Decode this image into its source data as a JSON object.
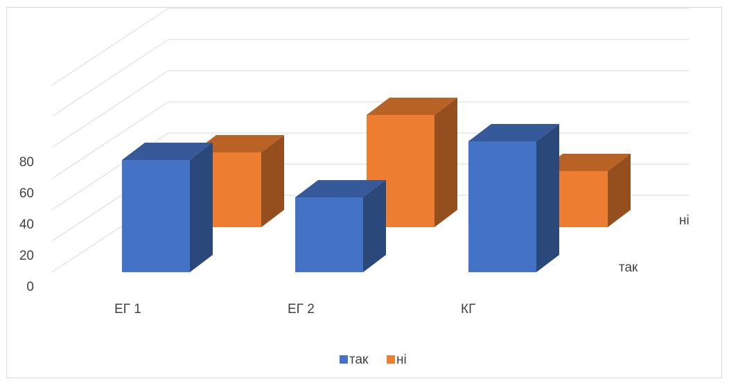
{
  "chart_data": {
    "type": "bar",
    "subtype": "3d-clustered-column",
    "categories": [
      "ЕГ 1",
      "ЕГ 2",
      "КГ"
    ],
    "series": [
      {
        "name": "так",
        "color": "#4472c4",
        "values": [
          60,
          40,
          70
        ]
      },
      {
        "name": "ні",
        "color": "#ed7d31",
        "values": [
          40,
          60,
          30
        ]
      }
    ],
    "y_ticks": [
      "0",
      "20",
      "40",
      "60",
      "80"
    ],
    "ylim": [
      0,
      100
    ],
    "depth_axis_labels": [
      "так",
      "ні"
    ],
    "legend_position": "bottom",
    "grid": true
  }
}
